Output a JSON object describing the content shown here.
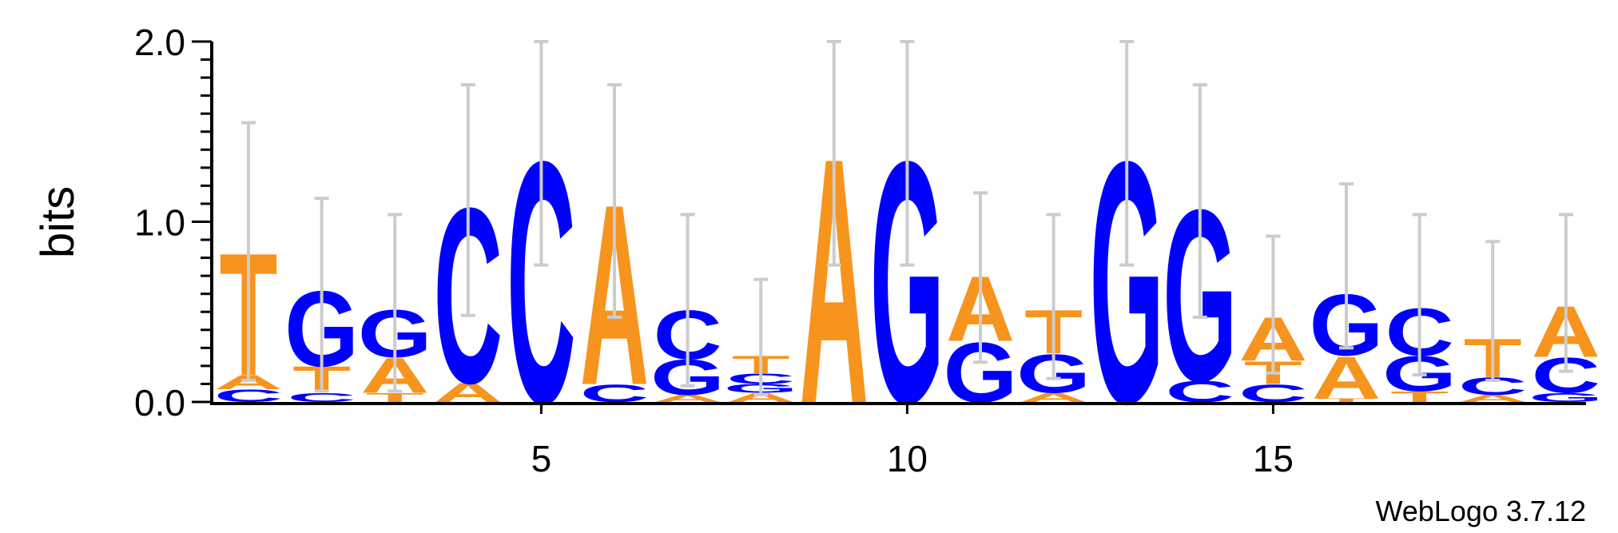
{
  "chart_data": {
    "type": "sequence-logo",
    "ylabel": "bits",
    "ylim": [
      0,
      2.0
    ],
    "y_ticks": [
      "0.0",
      "1.0",
      "2.0"
    ],
    "x_ticks": [
      5,
      10,
      15
    ],
    "credit": "WebLogo 3.7.12",
    "colors": {
      "A": "#f7941d",
      "T": "#f7941d",
      "C": "#0000ff",
      "G": "#0000ff",
      "error_bar": "#cccccc"
    },
    "positions": [
      {
        "pos": 1,
        "stack": [
          [
            "C",
            0.07
          ],
          [
            "A",
            0.08
          ],
          [
            "T",
            0.7
          ]
        ],
        "error": [
          0.12,
          1.55
        ]
      },
      {
        "pos": 2,
        "stack": [
          [
            "C",
            0.05
          ],
          [
            "T",
            0.15
          ],
          [
            "G",
            0.43
          ]
        ],
        "error": [
          0.06,
          1.13
        ]
      },
      {
        "pos": 3,
        "stack": [
          [
            "T",
            0.05
          ],
          [
            "A",
            0.2
          ],
          [
            "G",
            0.27
          ]
        ],
        "error": [
          0.06,
          1.04
        ]
      },
      {
        "pos": 4,
        "stack": [
          [
            "A",
            0.11
          ],
          [
            "C",
            1.0
          ]
        ],
        "error": [
          0.48,
          1.76
        ]
      },
      {
        "pos": 5,
        "stack": [
          [
            "C",
            1.38
          ]
        ],
        "error": [
          0.76,
          2.0
        ]
      },
      {
        "pos": 6,
        "stack": [
          [
            "C",
            0.1
          ],
          [
            "A",
            1.03
          ]
        ],
        "error": [
          0.47,
          1.76
        ]
      },
      {
        "pos": 7,
        "stack": [
          [
            "A",
            0.04
          ],
          [
            "G",
            0.2
          ],
          [
            "C",
            0.28
          ]
        ],
        "error": [
          0.09,
          1.04
        ]
      },
      {
        "pos": 8,
        "stack": [
          [
            "A",
            0.05
          ],
          [
            "G",
            0.05
          ],
          [
            "C",
            0.06
          ],
          [
            "T",
            0.1
          ]
        ],
        "error": [
          0.04,
          0.68
        ]
      },
      {
        "pos": 9,
        "stack": [
          [
            "A",
            1.4
          ]
        ],
        "error": [
          0.76,
          2.0
        ]
      },
      {
        "pos": 10,
        "stack": [
          [
            "G",
            1.38
          ]
        ],
        "error": [
          0.76,
          2.0
        ]
      },
      {
        "pos": 11,
        "stack": [
          [
            "G",
            0.34
          ],
          [
            "A",
            0.37
          ]
        ],
        "error": [
          0.22,
          1.16
        ]
      },
      {
        "pos": 12,
        "stack": [
          [
            "A",
            0.05
          ],
          [
            "G",
            0.22
          ],
          [
            "T",
            0.25
          ]
        ],
        "error": [
          0.13,
          1.04
        ]
      },
      {
        "pos": 13,
        "stack": [
          [
            "G",
            1.38
          ]
        ],
        "error": [
          0.76,
          2.0
        ]
      },
      {
        "pos": 14,
        "stack": [
          [
            "C",
            0.12
          ],
          [
            "G",
            0.98
          ]
        ],
        "error": [
          0.47,
          1.76
        ]
      },
      {
        "pos": 15,
        "stack": [
          [
            "C",
            0.1
          ],
          [
            "T",
            0.13
          ],
          [
            "A",
            0.25
          ]
        ],
        "error": [
          0.16,
          0.92
        ]
      },
      {
        "pos": 16,
        "stack": [
          [
            "T",
            0.02
          ],
          [
            "A",
            0.24
          ],
          [
            "G",
            0.35
          ]
        ],
        "error": [
          0.3,
          1.21
        ]
      },
      {
        "pos": 17,
        "stack": [
          [
            "T",
            0.06
          ],
          [
            "G",
            0.2
          ],
          [
            "C",
            0.27
          ]
        ],
        "error": [
          0.15,
          1.04
        ]
      },
      {
        "pos": 18,
        "stack": [
          [
            "A",
            0.04
          ],
          [
            "C",
            0.1
          ],
          [
            "T",
            0.22
          ],
          [
            "G",
            0.0
          ]
        ],
        "error": [
          0.12,
          0.89
        ]
      },
      {
        "pos": 19,
        "stack": [
          [
            "G",
            0.05
          ],
          [
            "C",
            0.2
          ],
          [
            "A",
            0.29
          ]
        ],
        "error": [
          0.17,
          1.04
        ]
      }
    ]
  }
}
